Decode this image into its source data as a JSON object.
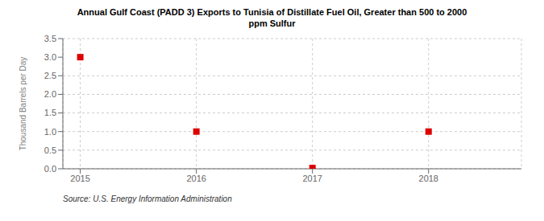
{
  "chart_data": {
    "type": "scatter",
    "title": "Annual Gulf Coast (PADD 3) Exports to Tunisia of Distillate Fuel Oil, Greater than 500 to 2000\nppm Sulfur",
    "ylabel": "Thousand Barrels per Day",
    "source": "Source: U.S. Energy Information Administration",
    "x": [
      2015,
      2016,
      2017,
      2018
    ],
    "values": [
      3.0,
      1.0,
      0.02,
      1.0
    ],
    "xlim": [
      2014.85,
      2018.8
    ],
    "ylim": [
      0.0,
      3.5
    ],
    "xticks": [
      2015,
      2016,
      2017,
      2018
    ],
    "yticks": [
      {
        "value": 0.0,
        "label": "0.0"
      },
      0.5,
      {
        "value": 1.0,
        "label": "1.0"
      },
      1.5,
      {
        "value": 2.0,
        "label": "2.0"
      },
      2.5,
      {
        "value": 3.0,
        "label": "3.0"
      },
      3.5
    ],
    "color": "#dd0000",
    "marker": "square",
    "grid": true
  }
}
